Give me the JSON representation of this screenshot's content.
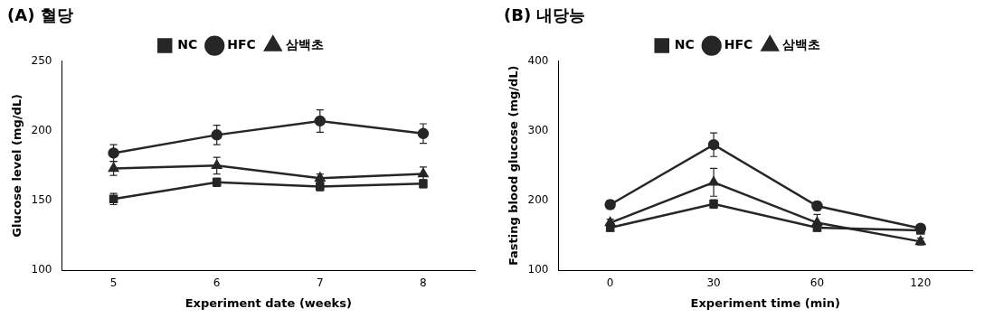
{
  "chart_data": [
    {
      "type": "line",
      "title": "(A) 혈당",
      "x_label": "Experiment date (weeks)",
      "y_label": "Glucose level (mg/dL)",
      "categories": [
        5,
        6,
        7,
        8
      ],
      "series": [
        {
          "name": "NC",
          "color": "#262626",
          "marker": "square",
          "line_style": "solid",
          "values": [
            151,
            163,
            160,
            162
          ],
          "errors": [
            4,
            3,
            3,
            3
          ]
        },
        {
          "name": "HFC",
          "color": "#262626",
          "marker": "circle",
          "line_style": "solid",
          "values": [
            184,
            197,
            207,
            198
          ],
          "errors": [
            6,
            7,
            8,
            7
          ]
        },
        {
          "name": "삼백초",
          "color": "#262626",
          "marker": "triangle",
          "line_style": "solid",
          "values": [
            173,
            175,
            166,
            169
          ],
          "errors": [
            5,
            6,
            3,
            5
          ]
        }
      ],
      "ylim": [
        100,
        250
      ],
      "yticks": [
        100,
        150,
        200,
        250
      ],
      "grid": false,
      "legend": "top"
    },
    {
      "type": "line",
      "title": "(B) 내당능",
      "x_label": "Experiment time (min)",
      "y_label": "Fasting blood glucose (mg/dL)",
      "categories": [
        0,
        30,
        60,
        120
      ],
      "series": [
        {
          "name": "NC",
          "color": "#262626",
          "marker": "square",
          "line_style": "solid",
          "values": [
            161,
            195,
            161,
            157
          ],
          "errors": [
            5,
            6,
            4,
            4
          ]
        },
        {
          "name": "HFC",
          "color": "#262626",
          "marker": "circle",
          "line_style": "solid",
          "values": [
            194,
            280,
            192,
            160
          ],
          "errors": [
            6,
            17,
            6,
            5
          ]
        },
        {
          "name": "삼백초",
          "color": "#262626",
          "marker": "triangle",
          "line_style": "solid",
          "values": [
            168,
            226,
            168,
            141
          ],
          "errors": [
            5,
            20,
            12,
            5
          ]
        }
      ],
      "ylim": [
        100,
        400
      ],
      "yticks": [
        100,
        200,
        300,
        400
      ],
      "grid": false,
      "legend": "top"
    }
  ]
}
